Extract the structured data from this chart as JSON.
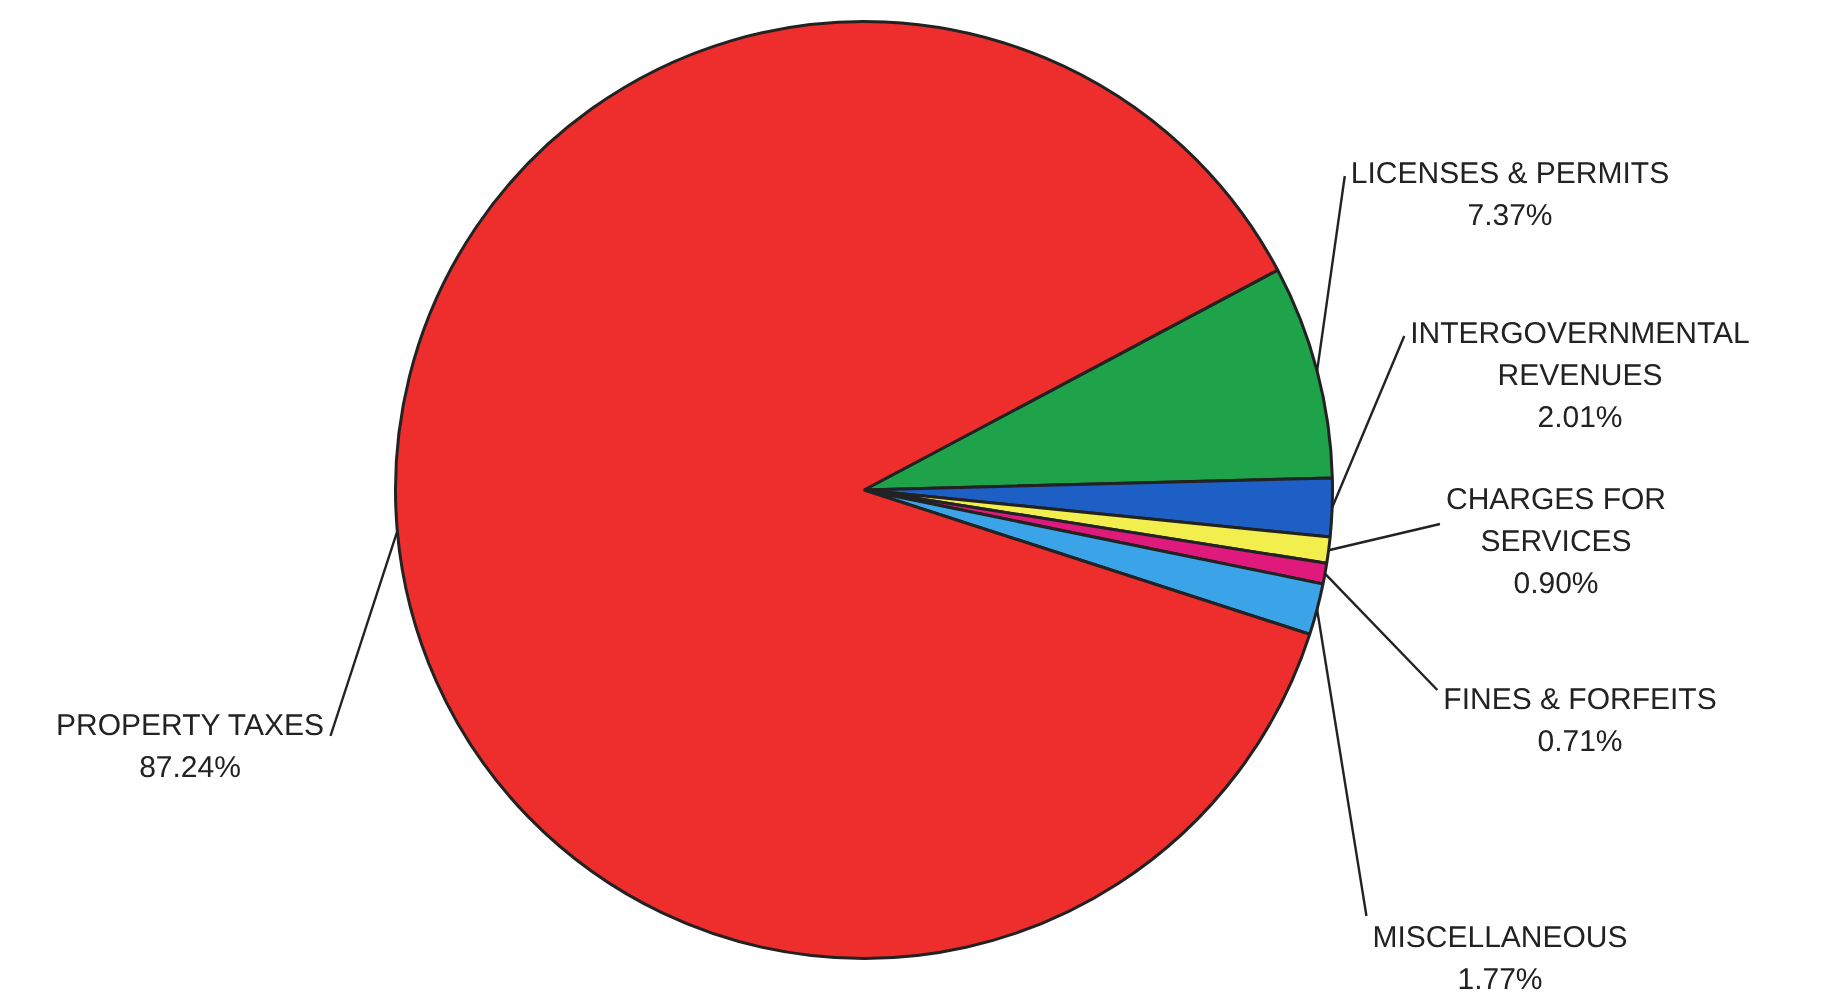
{
  "chart_data": {
    "type": "pie",
    "categories": [
      "LICENSES & PERMITS",
      "INTERGOVERNMENTAL REVENUES",
      "CHARGES FOR SERVICES",
      "FINES & FORFEITS",
      "MISCELLANEOUS",
      "PROPERTY TAXES"
    ],
    "values": [
      7.37,
      2.01,
      0.9,
      0.71,
      1.77,
      87.24
    ],
    "value_labels": [
      "7.37%",
      "2.01%",
      "0.90%",
      "0.71%",
      "1.77%",
      "87.24%"
    ],
    "colors": [
      "#1fa34a",
      "#1d5fc4",
      "#f2ee4e",
      "#e0197d",
      "#3ba4e8",
      "#ee2d2d"
    ],
    "legend": false
  }
}
